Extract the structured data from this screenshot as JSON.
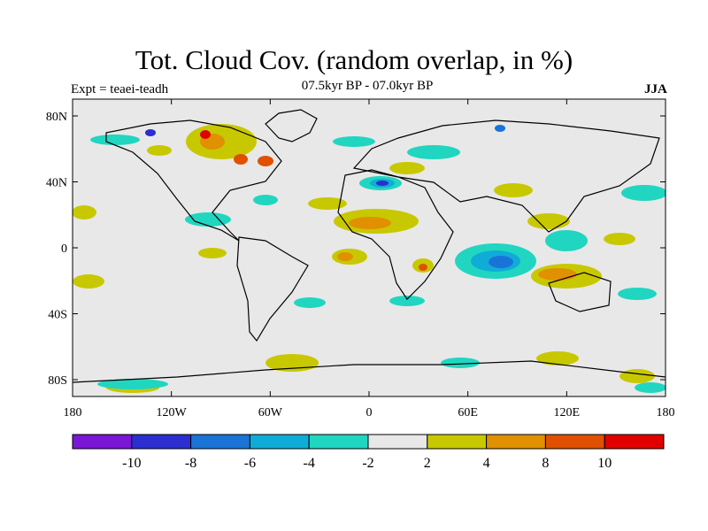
{
  "title": "Tot. Cloud Cov. (random overlap, in %)",
  "subtitle": "07.5kyr BP - 07.0kyr BP",
  "experiment": "Expt = teaei-teadh",
  "season": "JJA",
  "map": {
    "lat_ticks": [
      "80N",
      "40N",
      "0",
      "40S",
      "80S"
    ],
    "lon_ticks": [
      "180",
      "120W",
      "60W",
      "0",
      "60E",
      "120E",
      "180"
    ],
    "background_color": "#e8e8e8"
  },
  "colorbar": {
    "labels": [
      "-10",
      "-8",
      "-6",
      "-4",
      "-2",
      "2",
      "4",
      "8",
      "10"
    ],
    "colors": [
      "#7a16d6",
      "#2b2fd0",
      "#1a74d8",
      "#10acd8",
      "#20d6c0",
      "#e8e8e8",
      "#c8c800",
      "#e09000",
      "#e05000",
      "#e00000"
    ]
  }
}
